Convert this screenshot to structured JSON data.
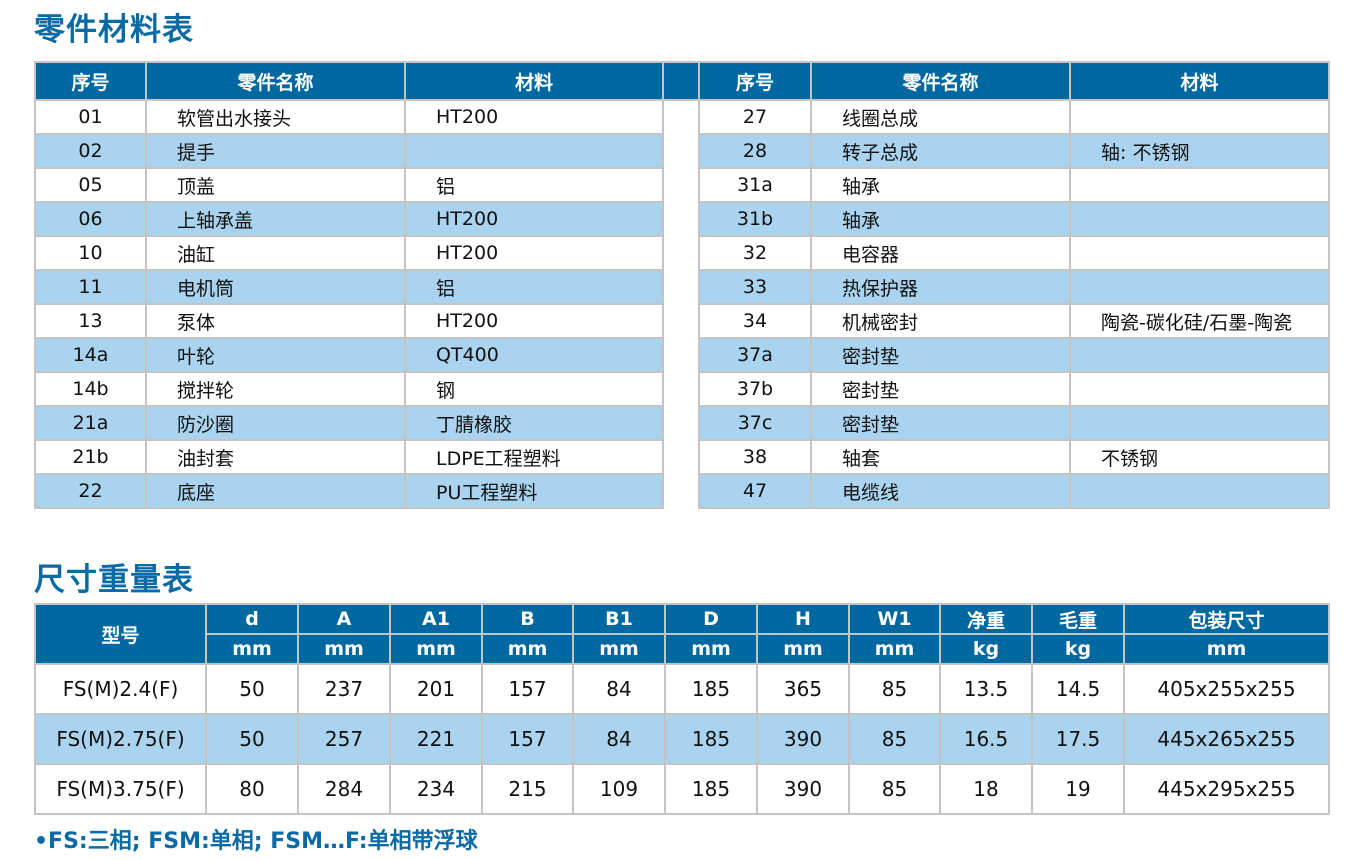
{
  "parts_title": "零件材料表",
  "parts_headers": [
    "序号",
    "零件名称",
    "材料"
  ],
  "parts_left": [
    [
      "01",
      "软管出水接头",
      "HT200"
    ],
    [
      "02",
      "提手",
      ""
    ],
    [
      "05",
      "顶盖",
      "铝"
    ],
    [
      "06",
      "上轴承盖",
      "HT200"
    ],
    [
      "10",
      "油缸",
      "HT200"
    ],
    [
      "11",
      "电机筒",
      "铝"
    ],
    [
      "13",
      "泵体",
      "HT200"
    ],
    [
      "14a",
      "叶轮",
      "QT400"
    ],
    [
      "14b",
      "搅拌轮",
      "钢"
    ],
    [
      "21a",
      "防沙圈",
      "丁腈橡胶"
    ],
    [
      "21b",
      "油封套",
      "LDPE工程塑料"
    ],
    [
      "22",
      "底座",
      "PU工程塑料"
    ]
  ],
  "parts_right": [
    [
      "27",
      "线圈总成",
      ""
    ],
    [
      "28",
      "转子总成",
      "轴: 不锈钢"
    ],
    [
      "31a",
      "轴承",
      ""
    ],
    [
      "31b",
      "轴承",
      ""
    ],
    [
      "32",
      "电容器",
      ""
    ],
    [
      "33",
      "热保护器",
      ""
    ],
    [
      "34",
      "机械密封",
      "陶瓷-碳化硅/石墨-陶瓷"
    ],
    [
      "37a",
      "密封垫",
      ""
    ],
    [
      "37b",
      "密封垫",
      ""
    ],
    [
      "37c",
      "密封垫",
      ""
    ],
    [
      "38",
      "轴套",
      "不锈钢"
    ],
    [
      "47",
      "电缆线",
      ""
    ]
  ],
  "dims_title": "尺寸重量表",
  "dims_model_header": "型号",
  "dims_headers": [
    "d",
    "A",
    "A1",
    "B",
    "B1",
    "D",
    "H",
    "W1",
    "净重",
    "毛重",
    "包装尺寸"
  ],
  "dims_units": [
    "mm",
    "mm",
    "mm",
    "mm",
    "mm",
    "mm",
    "mm",
    "mm",
    "kg",
    "kg",
    "mm"
  ],
  "dims_rows": [
    [
      "FS(M)2.4(F)",
      "50",
      "237",
      "201",
      "157",
      "84",
      "185",
      "365",
      "85",
      "13.5",
      "14.5",
      "405x255x255"
    ],
    [
      "FS(M)2.75(F)",
      "50",
      "257",
      "221",
      "157",
      "84",
      "185",
      "390",
      "85",
      "16.5",
      "17.5",
      "445x265x255"
    ],
    [
      "FS(M)3.75(F)",
      "80",
      "284",
      "234",
      "215",
      "109",
      "185",
      "390",
      "85",
      "18",
      "19",
      "445x295x255"
    ]
  ],
  "note": "•FS:三相; FSM:单相; FSM…F:单相带浮球",
  "colors": {
    "header": "#0068a0",
    "stripe": "#a9d3ee",
    "title": "#0a6aa3"
  }
}
